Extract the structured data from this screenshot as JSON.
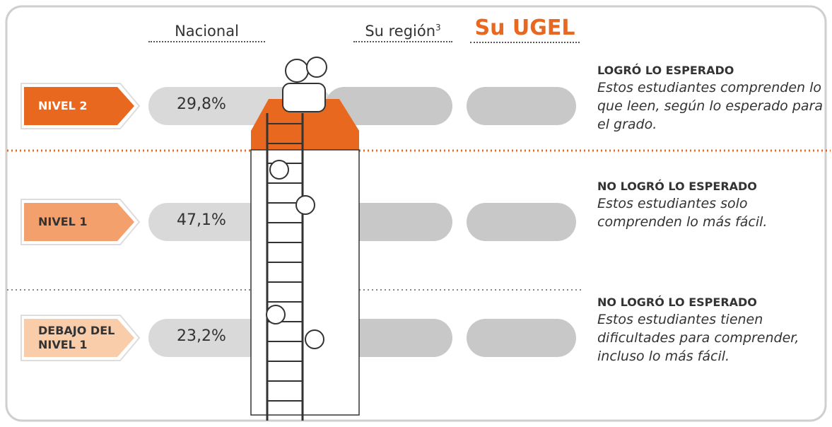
{
  "header": {
    "columns": [
      {
        "label": "Nacional"
      },
      {
        "label": "Su región",
        "footnote": "3"
      },
      {
        "label": "Su UGEL"
      }
    ]
  },
  "levels": [
    {
      "label": "NIVEL 2",
      "nacional": "29,8%",
      "title": "LOGRÓ LO ESPERADO",
      "description": "Estos estudiantes comprenden lo que leen, según lo esperado para el grado."
    },
    {
      "label": "NIVEL 1",
      "nacional": "47,1%",
      "title": "NO LOGRÓ LO ESPERADO",
      "description": "Estos estudiantes solo comprenden lo más fácil."
    },
    {
      "label": "DEBAJO DEL NIVEL 1",
      "nacional": "23,2%",
      "title": "NO LOGRÓ LO ESPERADO",
      "description": "Estos estudiantes tienen dificultades para comprender, incluso lo más fácil."
    }
  ]
}
